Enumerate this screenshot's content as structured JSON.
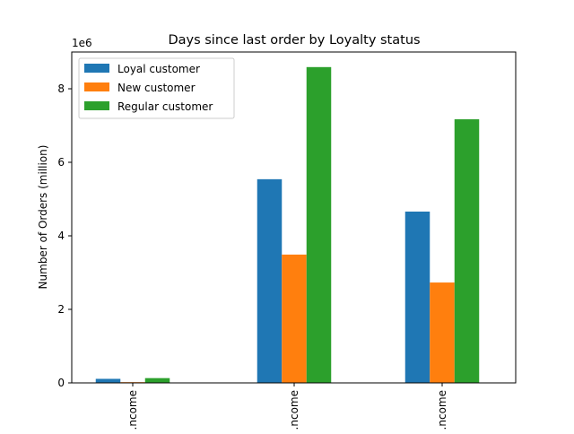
{
  "chart_data": {
    "type": "bar",
    "title": "Days since last order by Loyalty status",
    "xlabel": "",
    "ylabel": "Number of Orders (million)",
    "y_offset_label": "1e6",
    "categories": [
      "…ncome",
      "…ncome",
      "…ncome"
    ],
    "series": [
      {
        "name": "Loyal customer",
        "color": "#1f77b4",
        "values": [
          110000,
          5540000,
          4660000
        ]
      },
      {
        "name": "New customer",
        "color": "#ff7f0e",
        "values": [
          20000,
          3490000,
          2730000
        ]
      },
      {
        "name": "Regular customer",
        "color": "#2ca02c",
        "values": [
          130000,
          8590000,
          7170000
        ]
      }
    ],
    "ylim": [
      0,
      9000000
    ],
    "yticks": [
      0,
      2000000,
      4000000,
      6000000,
      8000000
    ],
    "ytick_labels": [
      "0",
      "2",
      "4",
      "6",
      "8"
    ],
    "grid": false,
    "legend": "top-left"
  }
}
